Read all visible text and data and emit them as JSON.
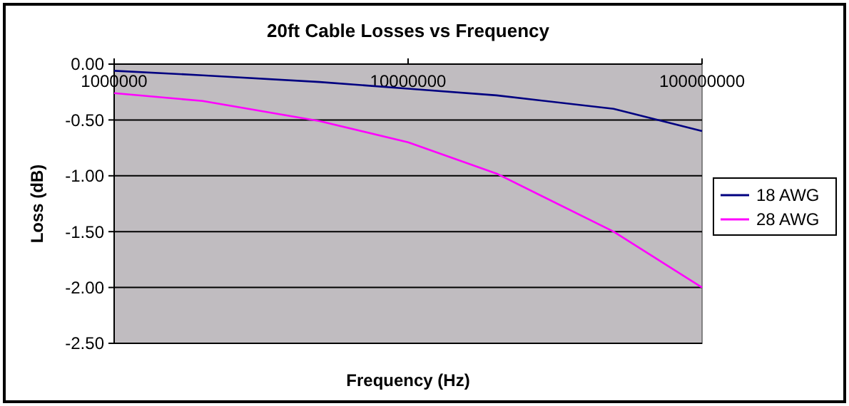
{
  "chart_data": {
    "type": "line",
    "title": "20ft Cable Losses vs Frequency",
    "xlabel": "Frequency (Hz)",
    "ylabel": "Loss (dB)",
    "log": "x",
    "x": [
      1000000,
      2000000,
      5000000,
      10000000,
      20000000,
      50000000,
      100000000
    ],
    "series": [
      {
        "name": "18 AWG",
        "color": "#000080",
        "values": [
          -0.06,
          -0.1,
          -0.16,
          -0.22,
          -0.28,
          -0.4,
          -0.6
        ]
      },
      {
        "name": "28 AWG",
        "color": "#ff00ff",
        "values": [
          -0.26,
          -0.33,
          -0.51,
          -0.7,
          -0.98,
          -1.5,
          -2.0
        ]
      }
    ],
    "xlim": [
      1000000,
      100000000
    ],
    "xticks": [
      1000000,
      10000000,
      100000000
    ],
    "ylim": [
      -2.5,
      0
    ],
    "yticks": [
      {
        "value": 0,
        "label": "0.00"
      },
      {
        "value": -0.5,
        "label": "-0.50"
      },
      {
        "value": -1,
        "label": "-1.00"
      },
      {
        "value": -1.5,
        "label": "-1.50"
      },
      {
        "value": -2,
        "label": "-2.00"
      },
      {
        "value": -2.5,
        "label": "-2.50"
      }
    ],
    "grid": "y",
    "legend": "right",
    "marker": "none",
    "line_style": "solid"
  }
}
